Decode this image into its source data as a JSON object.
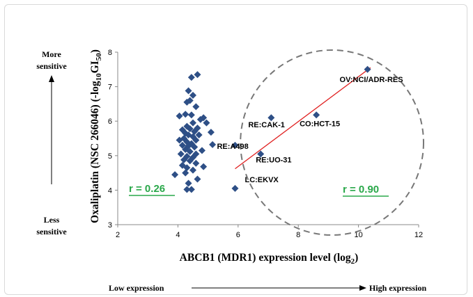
{
  "chart_data": {
    "type": "scatter",
    "xlabel": "ABCB1 (MDR1) expression level (log",
    "xlabel_sub": "2",
    "xlabel_end": ")",
    "ylabel_main": "Oxaliplatin (NSC 266046) (-log",
    "ylabel_sub1": "10",
    "ylabel_mid": "GI",
    "ylabel_sub2": "50",
    "ylabel_end": ")",
    "xlim": [
      2,
      12
    ],
    "ylim": [
      3,
      8
    ],
    "xticks": [
      "2",
      "4",
      "6",
      "8",
      "10",
      "12"
    ],
    "yticks": [
      "3",
      "4",
      "5",
      "6",
      "7",
      "8"
    ],
    "marker_color": "#2e4f86",
    "cluster_points": [
      [
        4.65,
        7.35
      ],
      [
        4.45,
        7.27
      ],
      [
        4.35,
        6.88
      ],
      [
        4.5,
        6.75
      ],
      [
        4.3,
        6.55
      ],
      [
        4.4,
        6.6
      ],
      [
        4.6,
        6.42
      ],
      [
        4.05,
        6.15
      ],
      [
        4.25,
        6.2
      ],
      [
        4.45,
        6.18
      ],
      [
        4.85,
        6.1
      ],
      [
        4.75,
        6.05
      ],
      [
        4.5,
        5.95
      ],
      [
        4.3,
        5.85
      ],
      [
        4.65,
        5.8
      ],
      [
        4.15,
        5.75
      ],
      [
        4.4,
        5.78
      ],
      [
        4.55,
        5.7
      ],
      [
        4.25,
        5.65
      ],
      [
        4.35,
        5.6
      ],
      [
        4.5,
        5.55
      ],
      [
        4.2,
        5.5
      ],
      [
        4.05,
        5.45
      ],
      [
        4.6,
        5.45
      ],
      [
        4.3,
        5.4
      ],
      [
        4.45,
        5.35
      ],
      [
        4.15,
        5.3
      ],
      [
        4.35,
        5.28
      ],
      [
        4.55,
        5.25
      ],
      [
        4.25,
        5.18
      ],
      [
        4.4,
        5.12
      ],
      [
        4.8,
        5.15
      ],
      [
        4.1,
        5.05
      ],
      [
        4.3,
        4.98
      ],
      [
        4.5,
        4.95
      ],
      [
        4.2,
        4.88
      ],
      [
        4.4,
        4.85
      ],
      [
        4.6,
        4.78
      ],
      [
        4.15,
        4.72
      ],
      [
        4.85,
        4.68
      ],
      [
        4.3,
        4.65
      ],
      [
        4.5,
        4.58
      ],
      [
        3.9,
        4.45
      ],
      [
        4.35,
        4.2
      ],
      [
        4.65,
        4.32
      ],
      [
        4.3,
        4.02
      ],
      [
        4.45,
        4.02
      ],
      [
        5.1,
        5.68
      ],
      [
        5.15,
        5.32
      ],
      [
        4.95,
        5.95
      ],
      [
        4.7,
        5.6
      ],
      [
        4.6,
        5.05
      ],
      [
        4.25,
        4.5
      ]
    ],
    "labeled_points": [
      {
        "name": "OV:NCI/ADR-RES",
        "x": 10.3,
        "y": 7.5
      },
      {
        "name": "CO:HCT-15",
        "x": 8.6,
        "y": 6.18
      },
      {
        "name": "RE:CAK-1",
        "x": 7.1,
        "y": 6.1
      },
      {
        "name": "RE:A498",
        "x": 5.9,
        "y": 5.3
      },
      {
        "name": "RE:UO-31",
        "x": 6.75,
        "y": 5.05
      },
      {
        "name": "LC:EKVX",
        "x": 5.9,
        "y": 4.05
      }
    ],
    "regression_line": {
      "x": [
        5.9,
        10.4
      ],
      "y": [
        4.62,
        7.55
      ],
      "color": "#e02020"
    },
    "annotations": {
      "r_left": "r = 0.26",
      "r_right": "r = 0.90",
      "r_color": "#2aa84a"
    }
  },
  "side_labels": {
    "more": "More",
    "more2": "sensitive",
    "less": "Less",
    "less2": "sensitive",
    "low_expression": "Low expression",
    "high_expression": "High expression"
  }
}
